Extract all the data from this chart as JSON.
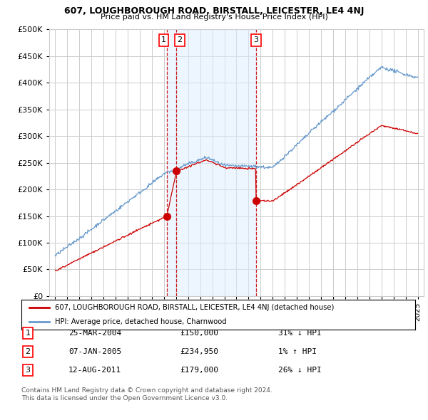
{
  "title": "607, LOUGHBOROUGH ROAD, BIRSTALL, LEICESTER, LE4 4NJ",
  "subtitle": "Price paid vs. HM Land Registry's House Price Index (HPI)",
  "legend_line1": "607, LOUGHBOROUGH ROAD, BIRSTALL, LEICESTER, LE4 4NJ (detached house)",
  "legend_line2": "HPI: Average price, detached house, Charnwood",
  "footer1": "Contains HM Land Registry data © Crown copyright and database right 2024.",
  "footer2": "This data is licensed under the Open Government Licence v3.0.",
  "transactions": [
    {
      "num": "1",
      "date": "25-MAR-2004",
      "price": "£150,000",
      "hpi": "31% ↓ HPI",
      "x": 2004.23,
      "y_red": 150000
    },
    {
      "num": "2",
      "date": "07-JAN-2005",
      "price": "£234,950",
      "hpi": "1% ↑ HPI",
      "x": 2005.03,
      "y_red": 234950
    },
    {
      "num": "3",
      "date": "12-AUG-2011",
      "price": "£179,000",
      "hpi": "26% ↓ HPI",
      "x": 2011.62,
      "y_red": 179000
    }
  ],
  "red_line_color": "#cc0000",
  "blue_line_color": "#6699cc",
  "shade_color": "#ddeeff",
  "dashed_vline_color": "#cc0000",
  "ylim": [
    0,
    500000
  ],
  "xlim_start": 1994.5,
  "xlim_end": 2025.5,
  "background_color": "#ffffff",
  "grid_color": "#cccccc"
}
